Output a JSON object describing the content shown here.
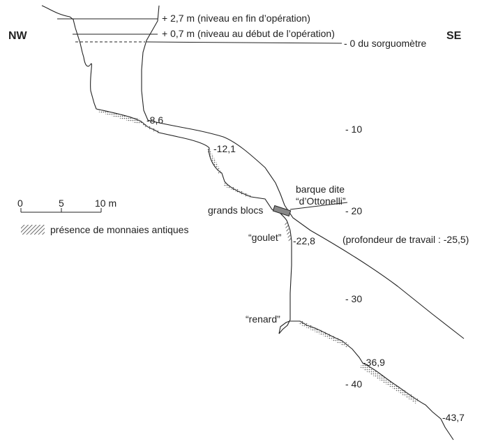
{
  "orientation": {
    "left": "NW",
    "right": "SE"
  },
  "levels": {
    "end": "+ 2,7 m (niveau en fin d’opération)",
    "start": "+ 0,7 m (niveau au début de l’opération)",
    "zero": "- 0 du sorguomètre"
  },
  "depth_scale": [
    "- 10",
    "- 20",
    "- 30",
    "- 40"
  ],
  "depth_marks": [
    "-8,6",
    "-12,1",
    "-22,8",
    "-36,9",
    "-43,7"
  ],
  "labels": {
    "boat_1": "barque dite",
    "boat_2": "“d’Ottonelli”",
    "blocks": "grands blocs",
    "goulet": "“goulet”",
    "renard": "“renard”",
    "work_depth": "(profondeur de travail : -25,5)"
  },
  "scale_bar": {
    "ticks": [
      "0",
      "5",
      "10 m"
    ]
  },
  "legend": {
    "label": "présence de monnaies antiques"
  }
}
